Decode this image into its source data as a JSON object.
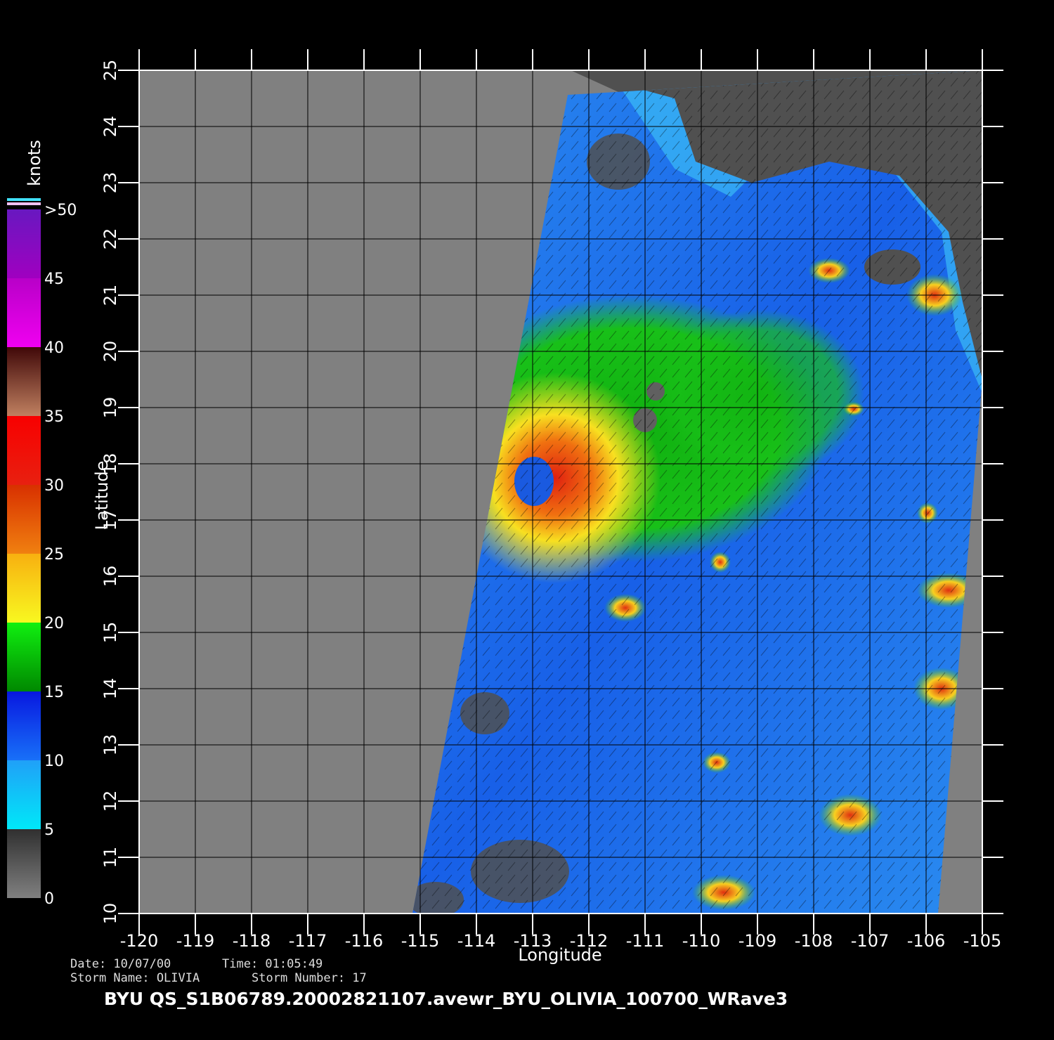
{
  "map": {
    "x_label": "Longitude",
    "y_label": "Latitude",
    "xlim": [
      -120,
      -105
    ],
    "ylim": [
      10,
      25
    ],
    "xticks": [
      -120,
      -119,
      -118,
      -117,
      -116,
      -115,
      -114,
      -113,
      -112,
      -111,
      -110,
      -109,
      -108,
      -107,
      -106,
      -105
    ],
    "yticks": [
      10,
      11,
      12,
      13,
      14,
      15,
      16,
      17,
      18,
      19,
      20,
      21,
      22,
      23,
      24,
      25
    ]
  },
  "colorbar": {
    "label": "knots",
    "ticks": [
      0,
      5,
      10,
      15,
      20,
      25,
      30,
      35,
      40,
      45,
      {
        "value": 50,
        "label": ">50"
      }
    ]
  },
  "info": {
    "date": "Date: 10/07/00",
    "time": "Time: 01:05:49",
    "storm_name": "Storm Name: OLIVIA",
    "storm_number": "Storm Number: 17",
    "footer": "BYU QS_S1B06789.20002821107.avewr_BYU_OLIVIA_100700_WRave3"
  }
}
